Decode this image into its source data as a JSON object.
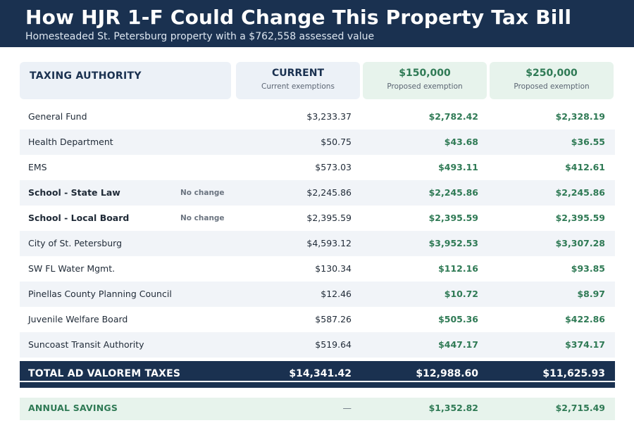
{
  "header": {
    "title": "How HJR 1-F Could Change This Property Tax Bill",
    "subtitle": "Homesteaded St. Petersburg property with a $762,558 assessed value"
  },
  "columns": {
    "authority": "TAXING AUTHORITY",
    "current": {
      "label": "CURRENT",
      "sub": "Current exemptions"
    },
    "p150": {
      "label": "$150,000",
      "sub": "Proposed exemption"
    },
    "p250": {
      "label": "$250,000",
      "sub": "Proposed exemption"
    }
  },
  "rows": [
    {
      "name": "General Fund",
      "note": "",
      "current": "$3,233.37",
      "p150": "$2,782.42",
      "p250": "$2,328.19"
    },
    {
      "name": "Health Department",
      "note": "",
      "current": "$50.75",
      "p150": "$43.68",
      "p250": "$36.55"
    },
    {
      "name": "EMS",
      "note": "",
      "current": "$573.03",
      "p150": "$493.11",
      "p250": "$412.61"
    },
    {
      "name": "School - State Law",
      "note": "No change",
      "current": "$2,245.86",
      "p150": "$2,245.86",
      "p250": "$2,245.86"
    },
    {
      "name": "School - Local Board",
      "note": "No change",
      "current": "$2,395.59",
      "p150": "$2,395.59",
      "p250": "$2,395.59"
    },
    {
      "name": "City of St. Petersburg",
      "note": "",
      "current": "$4,593.12",
      "p150": "$3,952.53",
      "p250": "$3,307.28"
    },
    {
      "name": "SW FL Water Mgmt.",
      "note": "",
      "current": "$130.34",
      "p150": "$112.16",
      "p250": "$93.85"
    },
    {
      "name": "Pinellas County Planning Council",
      "note": "",
      "current": "$12.46",
      "p150": "$10.72",
      "p250": "$8.97"
    },
    {
      "name": "Juvenile Welfare Board",
      "note": "",
      "current": "$587.26",
      "p150": "$505.36",
      "p250": "$422.86"
    },
    {
      "name": "Suncoast Transit Authority",
      "note": "",
      "current": "$519.64",
      "p150": "$447.17",
      "p250": "$374.17"
    }
  ],
  "total": {
    "label": "TOTAL AD VALOREM TAXES",
    "current": "$14,341.42",
    "p150": "$12,988.60",
    "p250": "$11,625.93"
  },
  "savings": {
    "label": "ANNUAL SAVINGS",
    "current": "—",
    "p150": "$1,352.82",
    "p250": "$2,715.49"
  },
  "colors": {
    "navy": "#1a3150",
    "green": "#2f7a55",
    "header_gray": "#ecf1f7",
    "header_green": "#e7f3ec",
    "row_alt": "#f1f4f8"
  }
}
